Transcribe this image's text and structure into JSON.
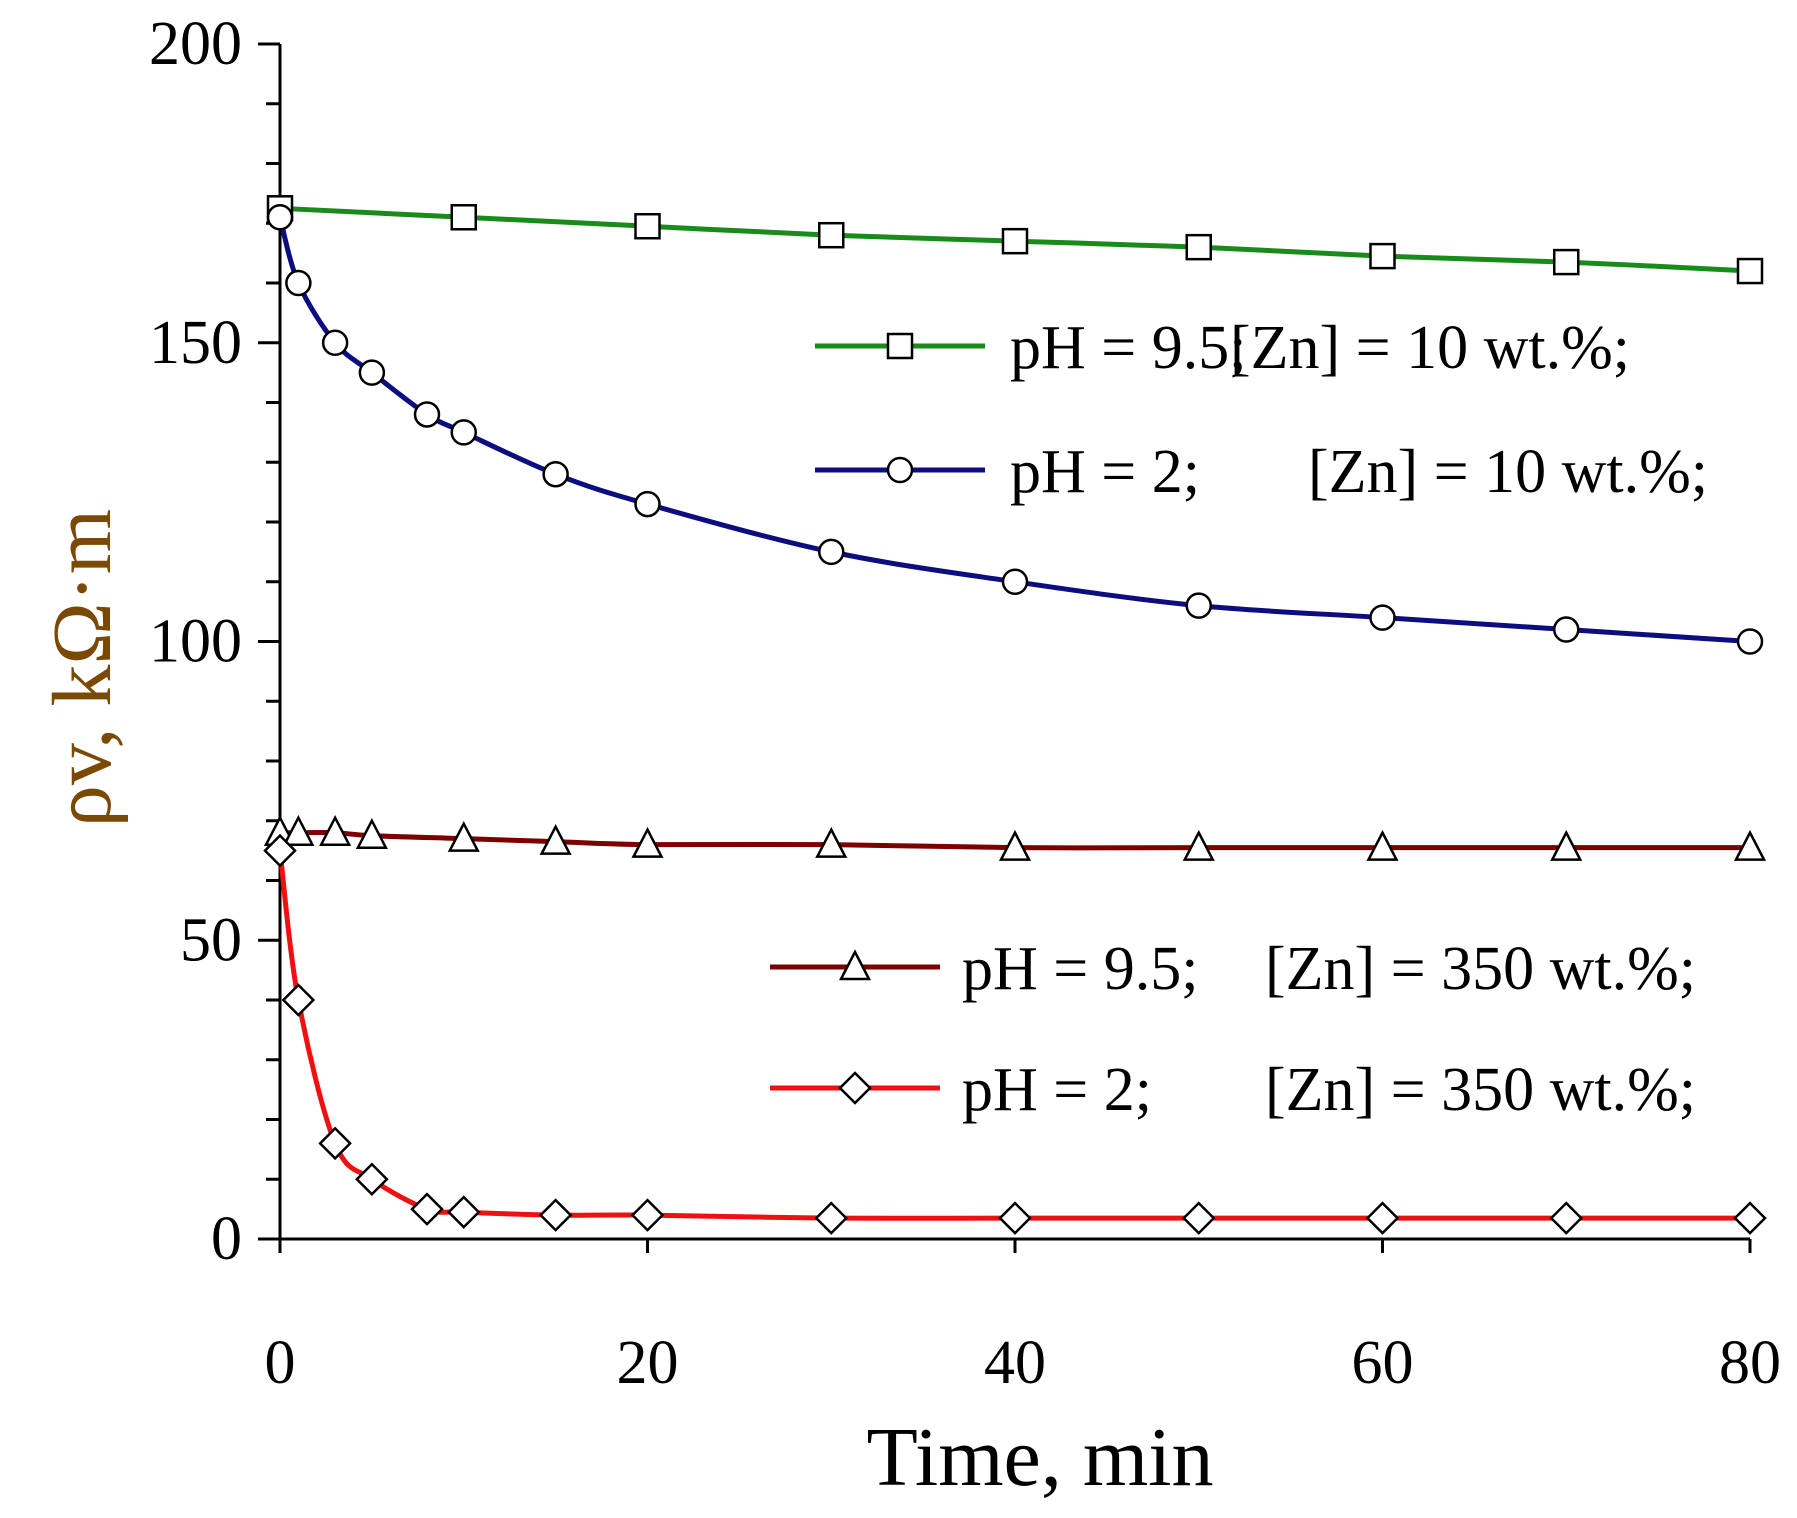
{
  "chart_data": {
    "type": "line",
    "title": "",
    "xlabel": "Time, min",
    "ylabel": "ρv, kΩ·m",
    "xlim": [
      0,
      80
    ],
    "ylim": [
      0,
      200
    ],
    "xticks": [
      0,
      20,
      40,
      60,
      80
    ],
    "yticks": [
      0,
      50,
      100,
      150,
      200
    ],
    "grid": false,
    "legend_groups": [
      {
        "position": "upper-right",
        "series": [
          0,
          1
        ]
      },
      {
        "position": "lower-right",
        "series": [
          2,
          3
        ]
      }
    ],
    "series": [
      {
        "name": "pH = 9.5; [Zn] = 10 wt.%;",
        "legend_ph": "pH = 9.5;",
        "legend_zn": "[Zn] = 10 wt.%;",
        "color": "#1a8a1a",
        "marker": "square",
        "x": [
          0,
          10,
          20,
          30,
          40,
          50,
          60,
          70,
          80
        ],
        "y": [
          172.5,
          171,
          169.5,
          168,
          167,
          166,
          164.5,
          163.5,
          162
        ]
      },
      {
        "name": "pH = 2; [Zn] = 10 wt.%;",
        "legend_ph": "pH = 2;",
        "legend_zn": "[Zn] = 10 wt.%;",
        "color": "#0d0d80",
        "marker": "circle",
        "x": [
          0,
          1,
          3,
          5,
          8,
          10,
          15,
          20,
          30,
          40,
          50,
          60,
          70,
          80
        ],
        "y": [
          171,
          160,
          150,
          145,
          138,
          135,
          128,
          123,
          115,
          110,
          106,
          104,
          102,
          100
        ]
      },
      {
        "name": "pH = 9.5; [Zn] = 350 wt.%;",
        "legend_ph": "pH = 9.5;",
        "legend_zn": "[Zn] = 350 wt.%;",
        "color": "#7b0000",
        "marker": "triangle",
        "x": [
          0,
          1,
          3,
          5,
          10,
          15,
          20,
          30,
          40,
          50,
          60,
          70,
          80
        ],
        "y": [
          68,
          68,
          68,
          67.5,
          67,
          66.5,
          66,
          66,
          65.5,
          65.5,
          65.5,
          65.5,
          65.5
        ]
      },
      {
        "name": "pH = 2; [Zn] = 350 wt.%;",
        "legend_ph": "pH = 2;",
        "legend_zn": "[Zn] = 350 wt.%;",
        "color": "#ee1111",
        "marker": "diamond",
        "x": [
          0,
          1,
          3,
          5,
          8,
          10,
          15,
          20,
          30,
          40,
          50,
          60,
          70,
          80
        ],
        "y": [
          65,
          40,
          16,
          10,
          5,
          4.5,
          4,
          4,
          3.5,
          3.5,
          3.5,
          3.5,
          3.5,
          3.5
        ]
      }
    ]
  }
}
